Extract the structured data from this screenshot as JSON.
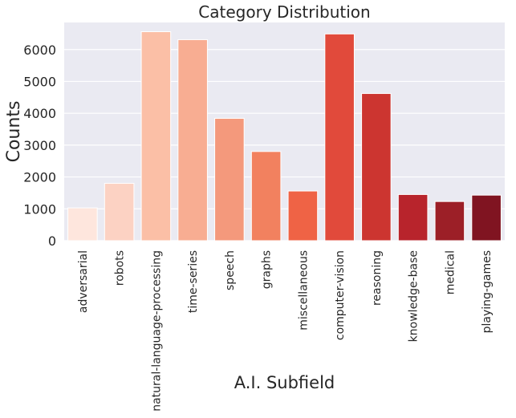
{
  "chart_data": {
    "type": "bar",
    "title": "Category Distribution",
    "xlabel": "A.I. Subfield",
    "ylabel": "Counts",
    "categories": [
      "adversarial",
      "robots",
      "natural-language-processing",
      "time-series",
      "speech",
      "graphs",
      "miscellaneous",
      "computer-vision",
      "reasoning",
      "knowledge-base",
      "medical",
      "playing-games"
    ],
    "values": [
      1030,
      1800,
      6560,
      6310,
      3840,
      2800,
      1560,
      6490,
      4620,
      1450,
      1230,
      1430
    ],
    "ylim": [
      0,
      6850
    ],
    "yticks": [
      "0",
      "1000",
      "2000",
      "3000",
      "4000",
      "5000",
      "6000"
    ],
    "grid": true,
    "legend": "none",
    "colors": [
      "#fee6dd",
      "#fcd2c3",
      "#fbbfa6",
      "#f8ad92",
      "#f4997c",
      "#f2815f",
      "#ef6345",
      "#e14a3b",
      "#cc3530",
      "#b8242c",
      "#9c1f27",
      "#801421"
    ],
    "background": "#eaeaf2"
  }
}
